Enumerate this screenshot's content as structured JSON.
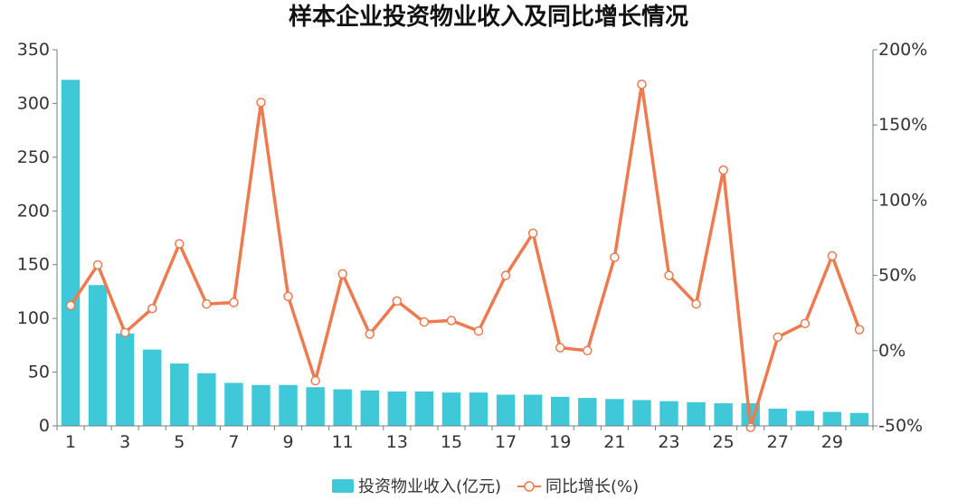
{
  "chart_data": {
    "type": "bar+line",
    "title": "样本企业投资物业收入及同比增长情况",
    "categories": [
      1,
      2,
      3,
      4,
      5,
      6,
      7,
      8,
      9,
      10,
      11,
      12,
      13,
      14,
      15,
      16,
      17,
      18,
      19,
      20,
      21,
      22,
      23,
      24,
      25,
      26,
      27,
      28,
      29,
      30
    ],
    "x_tick_labels": [
      "1",
      "3",
      "5",
      "7",
      "9",
      "11",
      "13",
      "15",
      "17",
      "19",
      "21",
      "23",
      "25",
      "27",
      "29"
    ],
    "left_axis": {
      "ylim": [
        0,
        350
      ],
      "ticks": [
        "0",
        "50",
        "100",
        "150",
        "200",
        "250",
        "300",
        "350"
      ]
    },
    "right_axis": {
      "ylim": [
        -50,
        200
      ],
      "ticks": [
        "-50%",
        "0%",
        "50%",
        "100%",
        "150%",
        "200%"
      ]
    },
    "grid": false,
    "legend_position": "bottom-center",
    "series": [
      {
        "name": "投资物业收入(亿元)",
        "type": "bar",
        "axis": "left",
        "color": "#3fc8d8",
        "values": [
          322,
          131,
          86,
          71,
          58,
          49,
          40,
          38,
          38,
          36,
          34,
          33,
          32,
          32,
          31,
          31,
          29,
          29,
          27,
          26,
          25,
          24,
          23,
          22,
          21,
          21,
          16,
          14,
          13,
          12
        ]
      },
      {
        "name": "同比增长(%)",
        "type": "line",
        "axis": "right",
        "color": "#ee7a4f",
        "values": [
          30,
          57,
          12,
          28,
          71,
          31,
          32,
          165,
          36,
          -20,
          51,
          11,
          33,
          19,
          20,
          13,
          50,
          78,
          2,
          0,
          62,
          177,
          50,
          31,
          120,
          -51,
          9,
          18,
          63,
          14
        ]
      }
    ]
  }
}
